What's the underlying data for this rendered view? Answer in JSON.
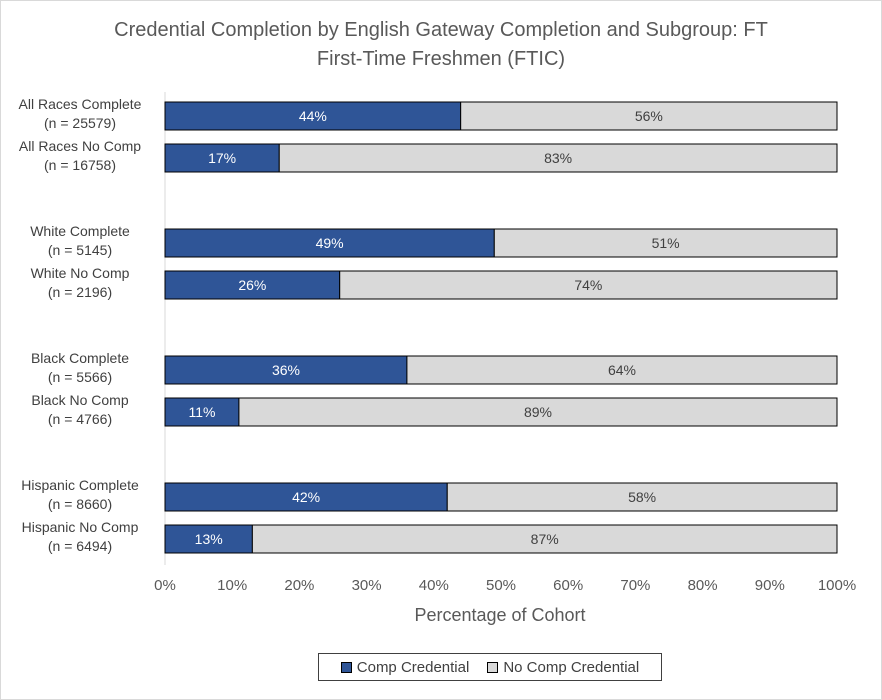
{
  "chart_data": {
    "type": "bar",
    "orientation": "horizontal",
    "stacked": true,
    "title_lines": [
      "Credential Completion by English Gateway Completion and Subgroup: FT",
      "First-Time Freshmen (FTIC)"
    ],
    "xlabel": "Percentage of Cohort",
    "ylabel": "",
    "xlim": [
      0,
      100
    ],
    "xticks": [
      "0%",
      "10%",
      "20%",
      "30%",
      "40%",
      "50%",
      "60%",
      "70%",
      "80%",
      "90%",
      "100%"
    ],
    "grid": false,
    "legend_position": "bottom",
    "groups": [
      {
        "bars": [
          {
            "label_lines": [
              "All Races Complete",
              "(n = 25579)"
            ],
            "comp": 44,
            "no_comp": 56
          },
          {
            "label_lines": [
              "All Races No Comp",
              "(n = 16758)"
            ],
            "comp": 17,
            "no_comp": 83
          }
        ]
      },
      {
        "bars": [
          {
            "label_lines": [
              "White Complete",
              "(n = 5145)"
            ],
            "comp": 49,
            "no_comp": 51
          },
          {
            "label_lines": [
              "White No Comp",
              "(n = 2196)"
            ],
            "comp": 26,
            "no_comp": 74
          }
        ]
      },
      {
        "bars": [
          {
            "label_lines": [
              "Black Complete",
              "(n = 5566)"
            ],
            "comp": 36,
            "no_comp": 64
          },
          {
            "label_lines": [
              "Black No Comp",
              "(n = 4766)"
            ],
            "comp": 11,
            "no_comp": 89
          }
        ]
      },
      {
        "bars": [
          {
            "label_lines": [
              "Hispanic Complete",
              "(n = 8660)"
            ],
            "comp": 42,
            "no_comp": 58
          },
          {
            "label_lines": [
              "Hispanic No Comp",
              "(n = 6494)"
            ],
            "comp": 13,
            "no_comp": 87
          }
        ]
      }
    ],
    "series": [
      {
        "name": "Comp Credential",
        "key": "comp",
        "color": "#2f5597",
        "label_color": "#ffffff"
      },
      {
        "name": "No Comp Credential",
        "key": "no_comp",
        "color": "#d9d9d9",
        "label_color": "#404040"
      }
    ]
  }
}
